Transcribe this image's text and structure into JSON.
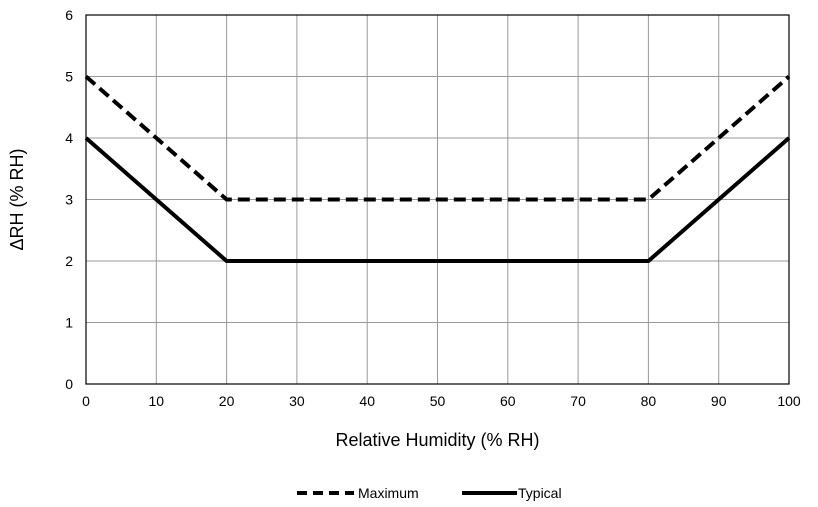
{
  "chart_data": {
    "type": "line",
    "title": "",
    "xlabel": "Relative Humidity (% RH)",
    "ylabel": "ΔRH (% RH)",
    "xlim": [
      0,
      100
    ],
    "ylim": [
      0,
      6
    ],
    "xticks": [
      "0",
      "10",
      "20",
      "30",
      "40",
      "50",
      "60",
      "70",
      "80",
      "90",
      "100"
    ],
    "yticks": [
      "0",
      "1",
      "2",
      "3",
      "4",
      "5",
      "6"
    ],
    "grid": true,
    "legend_position": "bottom-center",
    "series": [
      {
        "name": "Maximum",
        "style": "dashed",
        "color": "#000000",
        "x": [
          0,
          20,
          80,
          100
        ],
        "y": [
          5,
          3,
          3,
          5
        ]
      },
      {
        "name": "Typical",
        "style": "solid",
        "color": "#000000",
        "x": [
          0,
          20,
          80,
          100
        ],
        "y": [
          4,
          2,
          2,
          4
        ]
      }
    ]
  }
}
